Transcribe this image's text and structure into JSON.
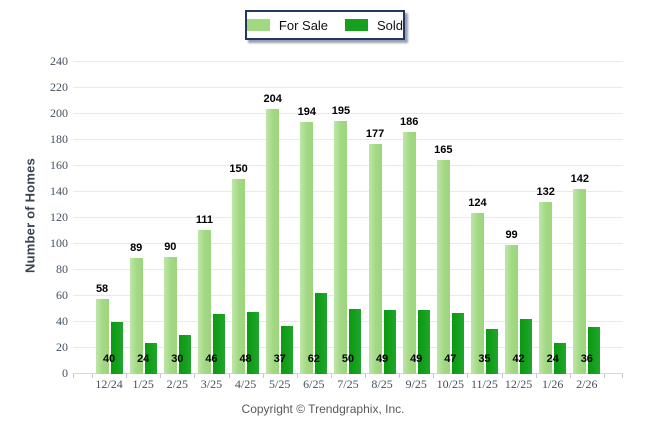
{
  "legend": {
    "for_sale": "For Sale",
    "sold": "Sold"
  },
  "footer": {
    "text": "Copyright © Trendgraphix, Inc."
  },
  "chart_data": {
    "type": "bar",
    "title": "",
    "xlabel": "",
    "ylabel": "Number of Homes",
    "ylim": [
      0,
      240
    ],
    "ytick_step": 20,
    "grid": "horizontal",
    "legend_position": "top-center",
    "categories": [
      "12/24",
      "1/25",
      "2/25",
      "3/25",
      "4/25",
      "5/25",
      "6/25",
      "7/25",
      "8/25",
      "9/25",
      "10/25",
      "11/25",
      "12/25",
      "1/26",
      "2/26"
    ],
    "series": [
      {
        "name": "For Sale",
        "color": "#a3d883",
        "values": [
          58,
          89,
          90,
          111,
          150,
          204,
          194,
          195,
          177,
          186,
          165,
          124,
          99,
          132,
          142
        ]
      },
      {
        "name": "Sold",
        "color": "#15a01e",
        "values": [
          40,
          24,
          30,
          46,
          48,
          37,
          62,
          50,
          49,
          49,
          47,
          35,
          42,
          24,
          36
        ]
      }
    ]
  }
}
